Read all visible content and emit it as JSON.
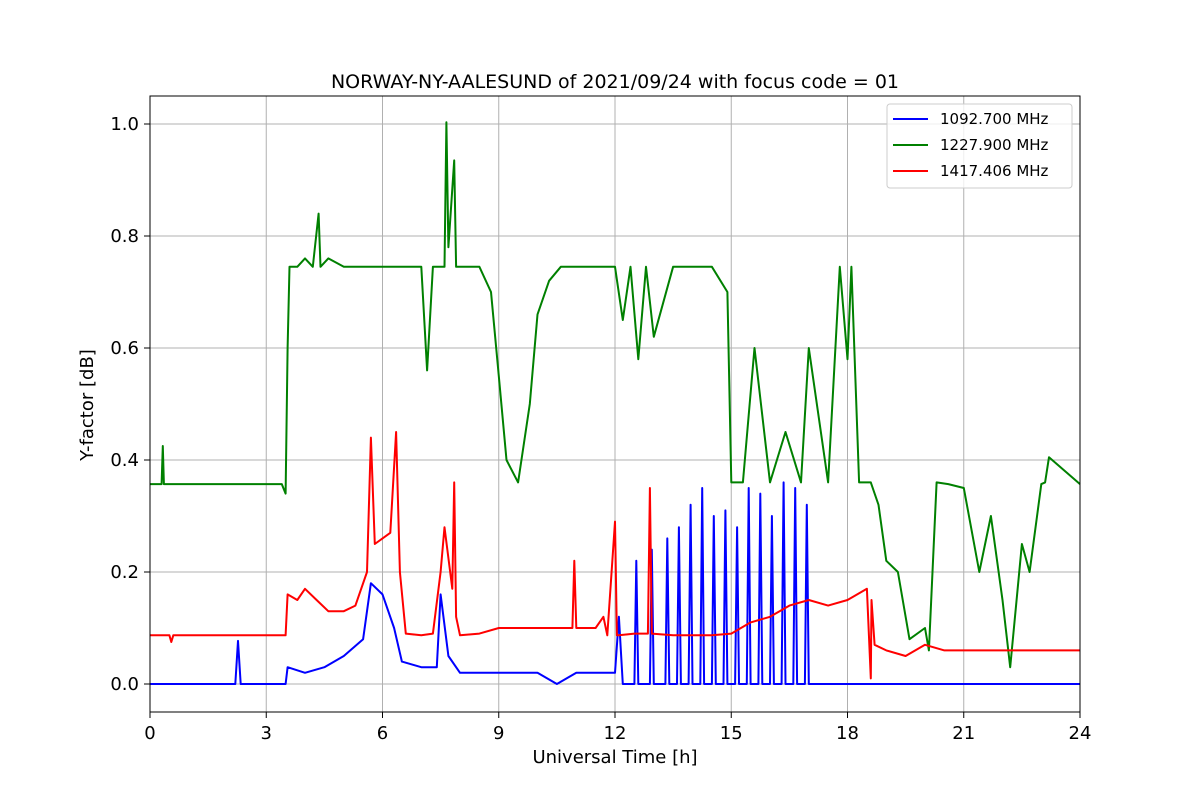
{
  "chart_data": {
    "type": "line",
    "title": "NORWAY-NY-AALESUND of 2021/09/24 with focus code = 01",
    "xlabel": "Universal Time [h]",
    "ylabel": "Y-factor [dB]",
    "xlim": [
      0,
      24
    ],
    "ylim": [
      -0.05,
      1.05
    ],
    "xticks": [
      0,
      3,
      6,
      9,
      12,
      15,
      18,
      21,
      24
    ],
    "xtick_labels": [
      "0",
      "3",
      "6",
      "9",
      "12",
      "15",
      "18",
      "21",
      "24"
    ],
    "yticks": [
      0.0,
      0.2,
      0.4,
      0.6,
      0.8,
      1.0
    ],
    "ytick_labels": [
      "0.0",
      "0.2",
      "0.4",
      "0.6",
      "0.8",
      "1.0"
    ],
    "grid": true,
    "legend_position": "top-right",
    "series": [
      {
        "name": "1092.700 MHz",
        "color": "#0000ff",
        "x": [
          0,
          2.2,
          2.27,
          2.34,
          3.5,
          3.55,
          4.0,
          4.5,
          5.0,
          5.5,
          5.7,
          6.0,
          6.3,
          6.5,
          7.0,
          7.4,
          7.5,
          7.7,
          8.0,
          8.3,
          9.0,
          10.0,
          10.5,
          11.0,
          11.5,
          12.0,
          12.1,
          12.2,
          12.5,
          12.55,
          12.6,
          12.9,
          12.95,
          13.0,
          13.3,
          13.35,
          13.4,
          13.6,
          13.65,
          13.7,
          13.9,
          13.95,
          14.0,
          14.2,
          14.25,
          14.3,
          14.5,
          14.55,
          14.6,
          14.8,
          14.85,
          14.9,
          15.1,
          15.15,
          15.2,
          15.4,
          15.45,
          15.5,
          15.7,
          15.75,
          15.8,
          16.0,
          16.05,
          16.1,
          16.3,
          16.35,
          16.4,
          16.6,
          16.65,
          16.7,
          16.9,
          16.95,
          17.0,
          17.2,
          17.25,
          24
        ],
        "y": [
          0,
          0,
          0.077,
          0,
          0,
          0.03,
          0.02,
          0.03,
          0.05,
          0.08,
          0.18,
          0.16,
          0.1,
          0.04,
          0.03,
          0.03,
          0.16,
          0.05,
          0.02,
          0.02,
          0.02,
          0.02,
          0.0,
          0.02,
          0.02,
          0.02,
          0.12,
          0.0,
          0.0,
          0.22,
          0.0,
          0.0,
          0.24,
          0.0,
          0.0,
          0.26,
          0.0,
          0.0,
          0.28,
          0.0,
          0.0,
          0.32,
          0.0,
          0.0,
          0.35,
          0.0,
          0.0,
          0.3,
          0.0,
          0.0,
          0.31,
          0.0,
          0.0,
          0.28,
          0.0,
          0.0,
          0.35,
          0.0,
          0.0,
          0.34,
          0.0,
          0.0,
          0.3,
          0.0,
          0.0,
          0.36,
          0.0,
          0.0,
          0.35,
          0.0,
          0.0,
          0.32,
          0.0,
          0.0,
          0.0,
          0
        ]
      },
      {
        "name": "1227.900 MHz",
        "color": "#008000",
        "x": [
          0,
          0.3,
          0.33,
          0.36,
          3.4,
          3.5,
          3.55,
          3.6,
          3.8,
          4.0,
          4.2,
          4.35,
          4.4,
          4.6,
          5.0,
          6.0,
          7.0,
          7.15,
          7.3,
          7.6,
          7.65,
          7.7,
          7.85,
          7.9,
          8.0,
          8.5,
          8.8,
          9.0,
          9.2,
          9.5,
          9.8,
          10.0,
          10.3,
          10.6,
          11.0,
          11.5,
          12.0,
          12.2,
          12.4,
          12.6,
          12.8,
          13.0,
          13.5,
          14.0,
          14.5,
          14.9,
          15.0,
          15.3,
          15.6,
          16.0,
          16.4,
          16.8,
          17.0,
          17.5,
          17.8,
          18.0,
          18.1,
          18.3,
          18.6,
          18.8,
          19.0,
          19.3,
          19.6,
          20.0,
          20.1,
          20.3,
          20.6,
          21.0,
          21.4,
          21.7,
          22.0,
          22.2,
          22.5,
          22.7,
          23.0,
          23.1,
          23.2,
          24
        ],
        "y": [
          0.357,
          0.357,
          0.425,
          0.357,
          0.357,
          0.34,
          0.6,
          0.745,
          0.745,
          0.76,
          0.745,
          0.84,
          0.745,
          0.76,
          0.745,
          0.745,
          0.745,
          0.56,
          0.745,
          0.745,
          1.003,
          0.78,
          0.935,
          0.745,
          0.745,
          0.745,
          0.7,
          0.55,
          0.4,
          0.36,
          0.5,
          0.66,
          0.72,
          0.745,
          0.745,
          0.745,
          0.745,
          0.65,
          0.745,
          0.58,
          0.745,
          0.62,
          0.745,
          0.745,
          0.745,
          0.7,
          0.36,
          0.36,
          0.6,
          0.36,
          0.45,
          0.36,
          0.6,
          0.36,
          0.745,
          0.58,
          0.745,
          0.36,
          0.36,
          0.32,
          0.22,
          0.2,
          0.08,
          0.1,
          0.06,
          0.36,
          0.357,
          0.35,
          0.2,
          0.3,
          0.15,
          0.03,
          0.25,
          0.2,
          0.357,
          0.36,
          0.405,
          0.357
        ]
      },
      {
        "name": "1417.406 MHz",
        "color": "#ff0000",
        "x": [
          0,
          0.5,
          0.55,
          0.6,
          3.5,
          3.55,
          3.8,
          4.0,
          4.3,
          4.6,
          5.0,
          5.3,
          5.6,
          5.7,
          5.8,
          6.0,
          6.2,
          6.35,
          6.45,
          6.6,
          7.0,
          7.3,
          7.5,
          7.6,
          7.8,
          7.85,
          7.9,
          8.0,
          8.5,
          9.0,
          9.5,
          10.0,
          10.5,
          10.9,
          10.95,
          11.0,
          11.5,
          11.7,
          11.8,
          12.0,
          12.05,
          12.1,
          12.5,
          12.85,
          12.9,
          12.95,
          13.5,
          14.0,
          14.5,
          15.0,
          15.5,
          16.0,
          16.5,
          17.0,
          17.5,
          18.0,
          18.5,
          18.6,
          18.62,
          18.7,
          19.0,
          19.5,
          20.0,
          20.5,
          21.0,
          21.5,
          22.0,
          22.5,
          23.0,
          23.5,
          24
        ],
        "y": [
          0.087,
          0.087,
          0.075,
          0.087,
          0.087,
          0.16,
          0.15,
          0.17,
          0.15,
          0.13,
          0.13,
          0.14,
          0.2,
          0.44,
          0.25,
          0.26,
          0.27,
          0.45,
          0.2,
          0.09,
          0.087,
          0.09,
          0.2,
          0.28,
          0.17,
          0.36,
          0.12,
          0.087,
          0.09,
          0.1,
          0.1,
          0.1,
          0.1,
          0.1,
          0.22,
          0.1,
          0.1,
          0.12,
          0.087,
          0.29,
          0.087,
          0.087,
          0.09,
          0.09,
          0.35,
          0.09,
          0.087,
          0.087,
          0.087,
          0.09,
          0.11,
          0.12,
          0.14,
          0.15,
          0.14,
          0.15,
          0.17,
          0.01,
          0.15,
          0.07,
          0.06,
          0.05,
          0.07,
          0.06,
          0.06,
          0.06,
          0.06,
          0.06,
          0.06,
          0.06,
          0.06
        ]
      }
    ]
  }
}
